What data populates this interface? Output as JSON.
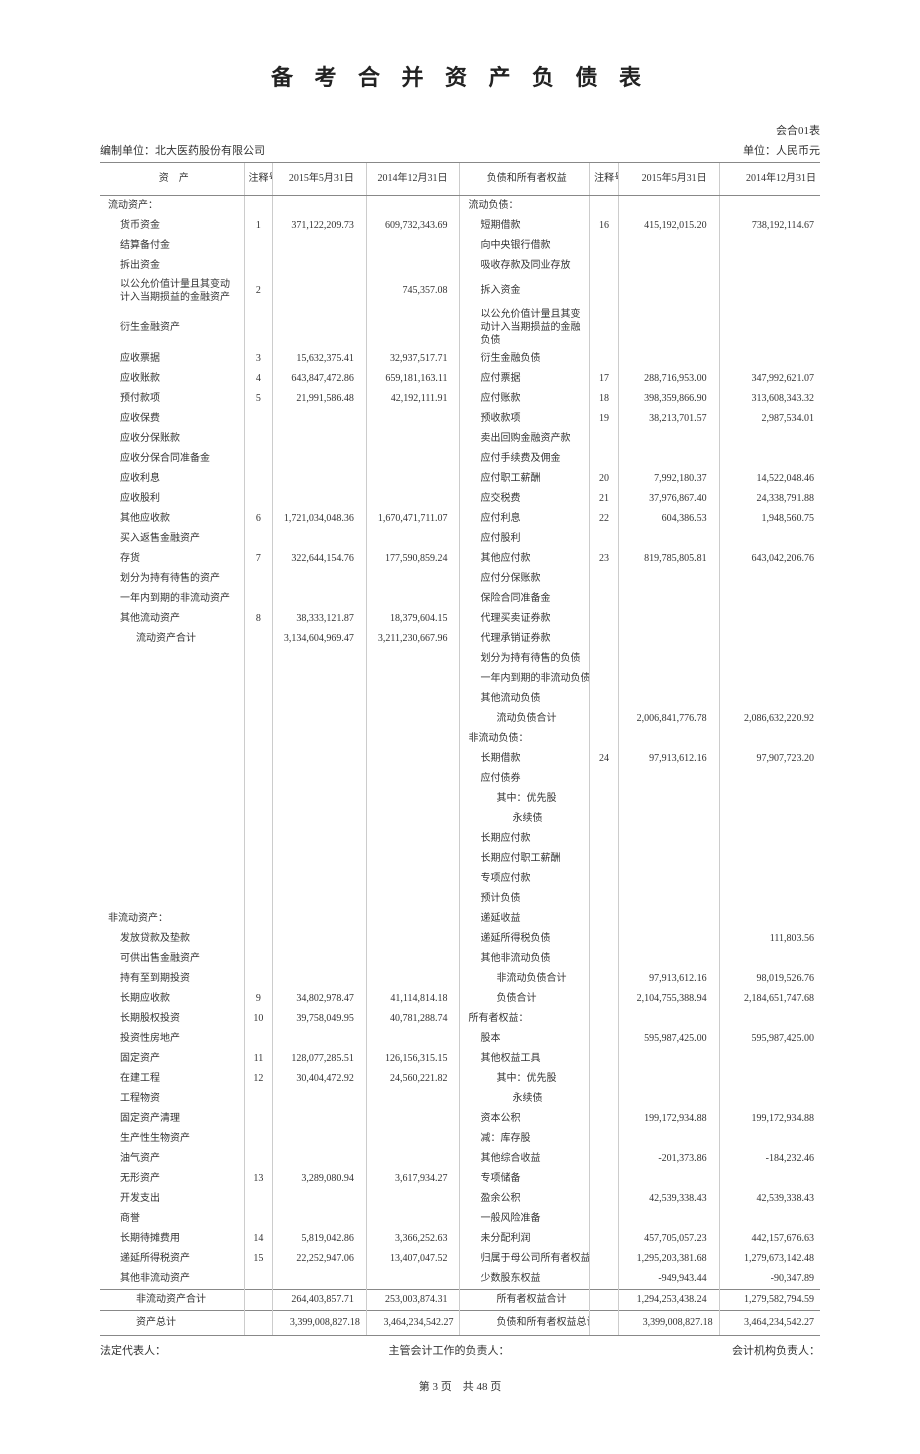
{
  "title": "备 考 合 并 资 产 负 债 表",
  "form_code": "会合01表",
  "compiler": "编制单位：北大医药股份有限公司",
  "unit": "单位：人民币元",
  "headers": {
    "assets": "资　产",
    "note": "注释号",
    "date1": "2015年5月31日",
    "date2": "2014年12月31日",
    "liab": "负债和所有者权益"
  },
  "footer": {
    "legal": "法定代表人：",
    "accountant": "主管会计工作的负责人：",
    "org": "会计机构负责人："
  },
  "pagination": "第 3 页　共 48 页",
  "rows": [
    {
      "l_label": "流动资产：",
      "l_indent": 0,
      "r_label": "流动负债：",
      "r_indent": 0,
      "section": true
    },
    {
      "l_label": "货币资金",
      "l_indent": 1,
      "l_note": "1",
      "l_v1": "371,122,209.73",
      "l_v2": "609,732,343.69",
      "r_label": "短期借款",
      "r_indent": 1,
      "r_note": "16",
      "r_v1": "415,192,015.20",
      "r_v2": "738,192,114.67"
    },
    {
      "l_label": "结算备付金",
      "l_indent": 1,
      "r_label": "向中央银行借款",
      "r_indent": 1
    },
    {
      "l_label": "拆出资金",
      "l_indent": 1,
      "r_label": "吸收存款及同业存放",
      "r_indent": 1
    },
    {
      "l_label": "以公允价值计量且其变动计入当期损益的金融资产",
      "l_indent": 1,
      "l_note": "2",
      "l_v2": "745,357.08",
      "r_label": "拆入资金",
      "r_indent": 1,
      "wrap": true
    },
    {
      "l_label": "衍生金融资产",
      "l_indent": 1,
      "r_label": "以公允价值计量且其变动计入当期损益的金融负债",
      "r_indent": 1,
      "wrap_r": true
    },
    {
      "l_label": "应收票据",
      "l_indent": 1,
      "l_note": "3",
      "l_v1": "15,632,375.41",
      "l_v2": "32,937,517.71",
      "r_label": "衍生金融负债",
      "r_indent": 1
    },
    {
      "l_label": "应收账款",
      "l_indent": 1,
      "l_note": "4",
      "l_v1": "643,847,472.86",
      "l_v2": "659,181,163.11",
      "r_label": "应付票据",
      "r_indent": 1,
      "r_note": "17",
      "r_v1": "288,716,953.00",
      "r_v2": "347,992,621.07"
    },
    {
      "l_label": "预付款项",
      "l_indent": 1,
      "l_note": "5",
      "l_v1": "21,991,586.48",
      "l_v2": "42,192,111.91",
      "r_label": "应付账款",
      "r_indent": 1,
      "r_note": "18",
      "r_v1": "398,359,866.90",
      "r_v2": "313,608,343.32"
    },
    {
      "l_label": "应收保费",
      "l_indent": 1,
      "r_label": "预收款项",
      "r_indent": 1,
      "r_note": "19",
      "r_v1": "38,213,701.57",
      "r_v2": "2,987,534.01"
    },
    {
      "l_label": "应收分保账款",
      "l_indent": 1,
      "r_label": "卖出回购金融资产款",
      "r_indent": 1
    },
    {
      "l_label": "应收分保合同准备金",
      "l_indent": 1,
      "r_label": "应付手续费及佣金",
      "r_indent": 1
    },
    {
      "l_label": "应收利息",
      "l_indent": 1,
      "r_label": "应付职工薪酬",
      "r_indent": 1,
      "r_note": "20",
      "r_v1": "7,992,180.37",
      "r_v2": "14,522,048.46"
    },
    {
      "l_label": "应收股利",
      "l_indent": 1,
      "r_label": "应交税费",
      "r_indent": 1,
      "r_note": "21",
      "r_v1": "37,976,867.40",
      "r_v2": "24,338,791.88"
    },
    {
      "l_label": "其他应收款",
      "l_indent": 1,
      "l_note": "6",
      "l_v1": "1,721,034,048.36",
      "l_v2": "1,670,471,711.07",
      "r_label": "应付利息",
      "r_indent": 1,
      "r_note": "22",
      "r_v1": "604,386.53",
      "r_v2": "1,948,560.75"
    },
    {
      "l_label": "买入返售金融资产",
      "l_indent": 1,
      "r_label": "应付股利",
      "r_indent": 1
    },
    {
      "l_label": "存货",
      "l_indent": 1,
      "l_note": "7",
      "l_v1": "322,644,154.76",
      "l_v2": "177,590,859.24",
      "r_label": "其他应付款",
      "r_indent": 1,
      "r_note": "23",
      "r_v1": "819,785,805.81",
      "r_v2": "643,042,206.76"
    },
    {
      "l_label": "划分为持有待售的资产",
      "l_indent": 1,
      "r_label": "应付分保账款",
      "r_indent": 1
    },
    {
      "l_label": "一年内到期的非流动资产",
      "l_indent": 1,
      "r_label": "保险合同准备金",
      "r_indent": 1
    },
    {
      "l_label": "其他流动资产",
      "l_indent": 1,
      "l_note": "8",
      "l_v1": "38,333,121.87",
      "l_v2": "18,379,604.15",
      "r_label": "代理买卖证券款",
      "r_indent": 1
    },
    {
      "l_label": "流动资产合计",
      "l_indent": 2,
      "l_v1": "3,134,604,969.47",
      "l_v2": "3,211,230,667.96",
      "r_label": "代理承销证券款",
      "r_indent": 1
    },
    {
      "l_label": "",
      "r_label": "划分为持有待售的负债",
      "r_indent": 1
    },
    {
      "l_label": "",
      "r_label": "一年内到期的非流动负债",
      "r_indent": 1
    },
    {
      "l_label": "",
      "r_label": "其他流动负债",
      "r_indent": 1
    },
    {
      "l_label": "",
      "r_label": "流动负债合计",
      "r_indent": 2,
      "r_v1": "2,006,841,776.78",
      "r_v2": "2,086,632,220.92"
    },
    {
      "l_label": "",
      "r_label": "非流动负债：",
      "r_indent": 0
    },
    {
      "l_label": "",
      "r_label": "长期借款",
      "r_indent": 1,
      "r_note": "24",
      "r_v1": "97,913,612.16",
      "r_v2": "97,907,723.20"
    },
    {
      "l_label": "",
      "r_label": "应付债券",
      "r_indent": 1
    },
    {
      "l_label": "",
      "r_label": "其中：优先股",
      "r_indent": 2
    },
    {
      "l_label": "",
      "r_label": "永续债",
      "r_indent": 3
    },
    {
      "l_label": "",
      "r_label": "长期应付款",
      "r_indent": 1
    },
    {
      "l_label": "",
      "r_label": "长期应付职工薪酬",
      "r_indent": 1
    },
    {
      "l_label": "",
      "r_label": "专项应付款",
      "r_indent": 1
    },
    {
      "l_label": "",
      "r_label": "预计负债",
      "r_indent": 1
    },
    {
      "l_label": "非流动资产：",
      "l_indent": 0,
      "r_label": "递延收益",
      "r_indent": 1,
      "section": true
    },
    {
      "l_label": "发放贷款及垫款",
      "l_indent": 1,
      "r_label": "递延所得税负债",
      "r_indent": 1,
      "r_v2": "111,803.56"
    },
    {
      "l_label": "可供出售金融资产",
      "l_indent": 1,
      "r_label": "其他非流动负债",
      "r_indent": 1
    },
    {
      "l_label": "持有至到期投资",
      "l_indent": 1,
      "r_label": "非流动负债合计",
      "r_indent": 2,
      "r_v1": "97,913,612.16",
      "r_v2": "98,019,526.76"
    },
    {
      "l_label": "长期应收款",
      "l_indent": 1,
      "l_note": "9",
      "l_v1": "34,802,978.47",
      "l_v2": "41,114,814.18",
      "r_label": "负债合计",
      "r_indent": 2,
      "r_v1": "2,104,755,388.94",
      "r_v2": "2,184,651,747.68"
    },
    {
      "l_label": "长期股权投资",
      "l_indent": 1,
      "l_note": "10",
      "l_v1": "39,758,049.95",
      "l_v2": "40,781,288.74",
      "r_label": "所有者权益：",
      "r_indent": 0
    },
    {
      "l_label": "投资性房地产",
      "l_indent": 1,
      "r_label": "股本",
      "r_indent": 1,
      "r_v1": "595,987,425.00",
      "r_v2": "595,987,425.00"
    },
    {
      "l_label": "固定资产",
      "l_indent": 1,
      "l_note": "11",
      "l_v1": "128,077,285.51",
      "l_v2": "126,156,315.15",
      "r_label": "其他权益工具",
      "r_indent": 1
    },
    {
      "l_label": "在建工程",
      "l_indent": 1,
      "l_note": "12",
      "l_v1": "30,404,472.92",
      "l_v2": "24,560,221.82",
      "r_label": "其中：优先股",
      "r_indent": 2
    },
    {
      "l_label": "工程物资",
      "l_indent": 1,
      "r_label": "永续债",
      "r_indent": 3
    },
    {
      "l_label": "固定资产清理",
      "l_indent": 1,
      "r_label": "资本公积",
      "r_indent": 1,
      "r_v1": "199,172,934.88",
      "r_v2": "199,172,934.88"
    },
    {
      "l_label": "生产性生物资产",
      "l_indent": 1,
      "r_label": "减：库存股",
      "r_indent": 1
    },
    {
      "l_label": "油气资产",
      "l_indent": 1,
      "r_label": "其他综合收益",
      "r_indent": 1,
      "r_v1": "-201,373.86",
      "r_v2": "-184,232.46"
    },
    {
      "l_label": "无形资产",
      "l_indent": 1,
      "l_note": "13",
      "l_v1": "3,289,080.94",
      "l_v2": "3,617,934.27",
      "r_label": "专项储备",
      "r_indent": 1
    },
    {
      "l_label": "开发支出",
      "l_indent": 1,
      "r_label": "盈余公积",
      "r_indent": 1,
      "r_v1": "42,539,338.43",
      "r_v2": "42,539,338.43"
    },
    {
      "l_label": "商誉",
      "l_indent": 1,
      "r_label": "一般风险准备",
      "r_indent": 1
    },
    {
      "l_label": "长期待摊费用",
      "l_indent": 1,
      "l_note": "14",
      "l_v1": "5,819,042.86",
      "l_v2": "3,366,252.63",
      "r_label": "未分配利润",
      "r_indent": 1,
      "r_v1": "457,705,057.23",
      "r_v2": "442,157,676.63"
    },
    {
      "l_label": "递延所得税资产",
      "l_indent": 1,
      "l_note": "15",
      "l_v1": "22,252,947.06",
      "l_v2": "13,407,047.52",
      "r_label": "归属于母公司所有者权益合计",
      "r_indent": 1,
      "r_v1": "1,295,203,381.68",
      "r_v2": "1,279,673,142.48"
    },
    {
      "l_label": "其他非流动资产",
      "l_indent": 1,
      "r_label": "少数股东权益",
      "r_indent": 1,
      "r_v1": "-949,943.44",
      "r_v2": "-90,347.89"
    },
    {
      "l_label": "非流动资产合计",
      "l_indent": 2,
      "l_v1": "264,403,857.71",
      "l_v2": "253,003,874.31",
      "r_label": "所有者权益合计",
      "r_indent": 2,
      "r_v1": "1,294,253,438.24",
      "r_v2": "1,279,582,794.59",
      "subtotal": true
    },
    {
      "l_label": "资产总计",
      "l_indent": 2,
      "l_v1": "3,399,008,827.18",
      "l_v2": "3,464,234,542.27",
      "r_label": "负债和所有者权益总计",
      "r_indent": 2,
      "r_v1": "3,399,008,827.18",
      "r_v2": "3,464,234,542.27",
      "total": true
    }
  ]
}
